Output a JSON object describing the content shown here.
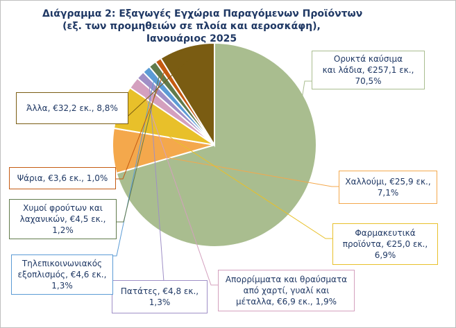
{
  "chart_data": {
    "type": "pie",
    "title": [
      "Διάγραμμα 2: Εξαγωγές Εγχώρια Παραγόμενων Προϊόντων",
      "(εξ. των προμηθειών σε πλοία και αεροσκάφη),",
      "Ιανουάριος 2025"
    ],
    "slices": [
      {
        "name": "Ορυκτά καύσιμα και λάδια",
        "value": 257.1,
        "percent": 70.5,
        "color": "#a9bd8f",
        "label_lines": [
          "Ορυκτά καύσιμα",
          "και λάδια, €257,1 εκ.,",
          "70,5%"
        ]
      },
      {
        "name": "Χαλλούμι",
        "value": 25.9,
        "percent": 7.1,
        "color": "#f4a84c",
        "label_lines": [
          "Χαλλούμι, €25,9 εκ.,",
          "7,1%"
        ]
      },
      {
        "name": "Φαρμακευτικά προϊόντα",
        "value": 25.0,
        "percent": 6.9,
        "color": "#e8c02a",
        "label_lines": [
          "Φαρμακευτικά",
          "προϊόντα, €25,0 εκ.,",
          "6,9%"
        ]
      },
      {
        "name": "Απορρίμματα και θραύσματα από χαρτί, γυαλί και μέταλλα",
        "value": 6.9,
        "percent": 1.9,
        "color": "#d4a0be",
        "label_lines": [
          "Απορρίμματα και θραύσματα",
          "από χαρτί, γυαλί και",
          "μέταλλα, €6,9 εκ., 1,9%"
        ]
      },
      {
        "name": "Πατάτες",
        "value": 4.8,
        "percent": 1.3,
        "color": "#9f8fc6",
        "label_lines": [
          "Πατάτες, €4,8 εκ.,",
          "1,3%"
        ]
      },
      {
        "name": "Τηλεπικοινωνιακός εξοπλισμός",
        "value": 4.6,
        "percent": 1.3,
        "color": "#5b9bd5",
        "label_lines": [
          "Τηλεπικοινωνιακός",
          "εξοπλισμός, €4,6 εκ.,",
          "1,3%"
        ]
      },
      {
        "name": "Χυμοί φρούτων και λαχανικών",
        "value": 4.5,
        "percent": 1.2,
        "color": "#617a4b",
        "label_lines": [
          "Χυμοί φρούτων και",
          "λαχανικών, €4,5 εκ.,",
          "1,2%"
        ]
      },
      {
        "name": "Ψάρια",
        "value": 3.6,
        "percent": 1.0,
        "color": "#c55a11",
        "label_lines": [
          "Ψάρια, €3,6 εκ., 1,0%"
        ]
      },
      {
        "name": "Άλλα",
        "value": 32.2,
        "percent": 8.8,
        "color": "#7a5c12",
        "label_lines": [
          "Άλλα, €32,2 εκ., 8,8%"
        ]
      }
    ]
  }
}
